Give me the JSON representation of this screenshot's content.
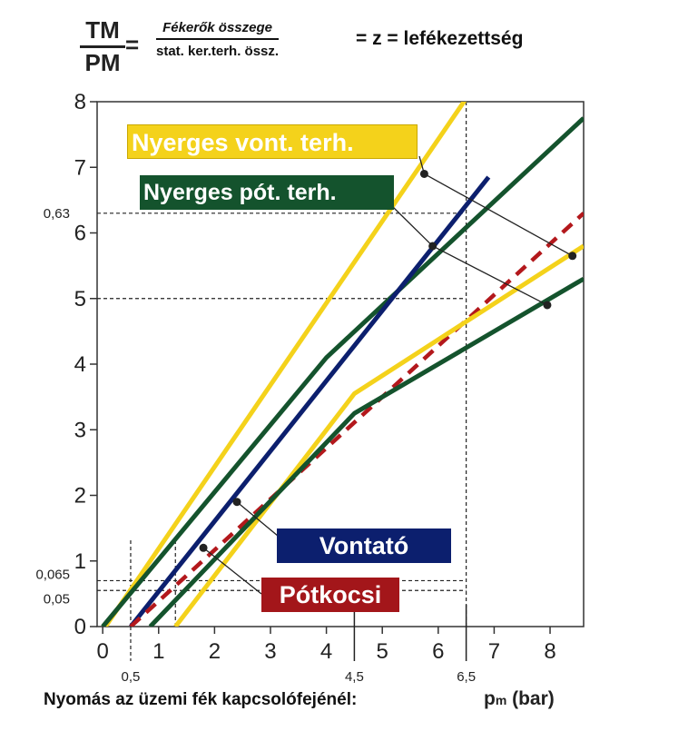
{
  "formula": {
    "lhs_num": "TM",
    "lhs_den": "PM",
    "equals": "=",
    "rhs_num": "Fékerők összege",
    "rhs_den": "stat. ker.terh. össz.",
    "result": "= z = lefékezettség"
  },
  "x_axis_title": "Nyomás az üzemi fék kapcsolófejénél:",
  "unit": {
    "main": "p",
    "sub": "m",
    "rest": " (bar)"
  },
  "legend": {
    "nyerges_vont": "Nyerges vont. terh.",
    "nyerges_pot": "Nyerges pót. terh.",
    "vontato": "Vontató",
    "potkocsi": "Pótkocsi"
  },
  "colors": {
    "yellow": "#f4d21b",
    "green": "#14532d",
    "blue": "#0c1f6e",
    "red": "#b3181c",
    "grid": "#222222"
  },
  "chart_data": {
    "type": "line",
    "xlim": [
      -0.1,
      8.6
    ],
    "ylim": [
      0,
      8
    ],
    "x_ticks": [
      0,
      1,
      2,
      3,
      4,
      5,
      6,
      7,
      8
    ],
    "y_ticks": [
      0,
      1,
      2,
      3,
      4,
      5,
      6,
      7,
      8
    ],
    "extra_x_labels": [
      {
        "value": 0.5,
        "label": "0,5"
      },
      {
        "value": 4.5,
        "label": "4,5"
      },
      {
        "value": 6.5,
        "label": "6,5"
      }
    ],
    "extra_y_labels": [
      {
        "value": 6.3,
        "label": "0,63"
      },
      {
        "value": 0.7,
        "label": "0,065"
      },
      {
        "value": 0.55,
        "label": "0,05"
      }
    ],
    "dashed_y": [
      6.3,
      5.0,
      0.7,
      0.55
    ],
    "dashed_x": [
      0.5,
      1.3,
      6.5
    ],
    "solid_x": [
      4.5,
      6.5
    ],
    "series": [
      {
        "key": "yellow_upper",
        "color": "yellow",
        "style": "solid",
        "points": [
          [
            0.05,
            0
          ],
          [
            6.5,
            8.05
          ]
        ]
      },
      {
        "key": "green_upper",
        "color": "green",
        "style": "solid",
        "points": [
          [
            0,
            0
          ],
          [
            4,
            4.1
          ],
          [
            8.6,
            7.75
          ]
        ]
      },
      {
        "key": "blue",
        "color": "blue",
        "style": "solid",
        "points": [
          [
            0.5,
            0
          ],
          [
            6.9,
            6.85
          ]
        ]
      },
      {
        "key": "red",
        "color": "red",
        "style": "dashed",
        "points": [
          [
            0.5,
            0
          ],
          [
            8.6,
            6.3
          ]
        ]
      },
      {
        "key": "yellow_lower",
        "color": "yellow",
        "style": "solid",
        "points": [
          [
            1.3,
            0
          ],
          [
            4.5,
            3.55
          ],
          [
            8.6,
            5.8
          ]
        ]
      },
      {
        "key": "green_lower",
        "color": "green",
        "style": "solid",
        "points": [
          [
            0.85,
            0
          ],
          [
            4.5,
            3.25
          ],
          [
            8.6,
            5.3
          ]
        ]
      }
    ],
    "markers": [
      {
        "x": 5.75,
        "y": 6.9
      },
      {
        "x": 5.9,
        "y": 5.8
      },
      {
        "x": 7.95,
        "y": 4.9
      },
      {
        "x": 8.4,
        "y": 5.65
      },
      {
        "x": 2.4,
        "y": 1.9
      },
      {
        "x": 1.8,
        "y": 1.2
      }
    ],
    "leaders": [
      {
        "from": [
          5.75,
          6.9
        ],
        "to": [
          8.4,
          5.65
        ]
      },
      {
        "from": [
          5.9,
          5.8
        ],
        "to": [
          7.95,
          4.9
        ]
      }
    ]
  }
}
